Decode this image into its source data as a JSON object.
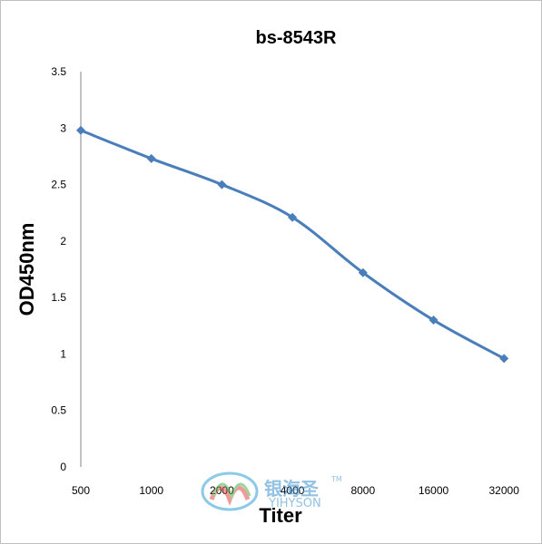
{
  "chart_data": {
    "type": "line",
    "title": "bs-8543R",
    "xlabel": "Titer",
    "ylabel": "OD450nm",
    "categories": [
      "500",
      "1000",
      "2000",
      "4000",
      "8000",
      "16000",
      "32000"
    ],
    "series": [
      {
        "values": [
          2.98,
          2.73,
          2.5,
          2.21,
          1.72,
          1.3,
          0.96
        ]
      }
    ],
    "ylim": [
      0,
      3.5
    ],
    "yticks": [
      "0",
      "0.5",
      "1",
      "1.5",
      "2",
      "2.5",
      "3",
      "3.5"
    ],
    "grid": false,
    "line_color": "#4a7ebb",
    "marker": "diamond",
    "smooth": true
  },
  "watermark": {
    "chinese": "银海圣",
    "trademark": "TM",
    "english": "YIHYSON",
    "colors": [
      "#e24a4a",
      "#2e9fd6",
      "#4bb44b"
    ]
  }
}
